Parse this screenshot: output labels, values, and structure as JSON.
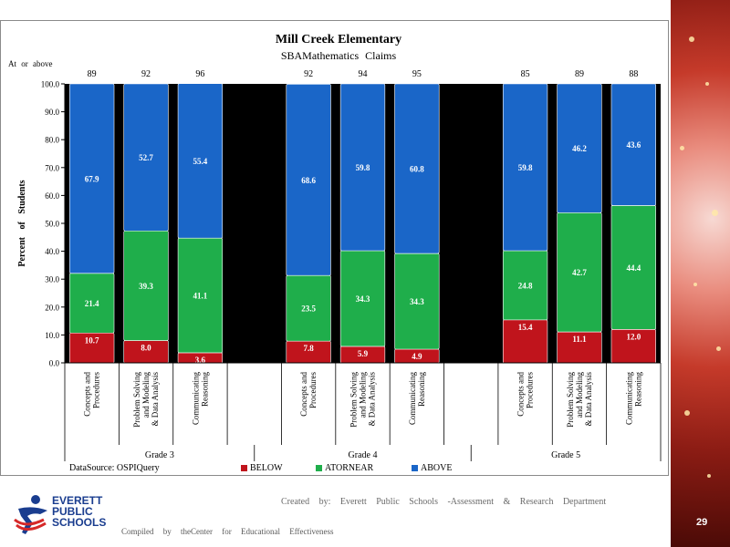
{
  "page_number": "29",
  "footer": {
    "credit": "Created by: Everett Public Schools -Assessment & Research Department",
    "compiled": "Compiled by theCenter for Educational Effectiveness"
  },
  "logo": {
    "line1": "EVERETT",
    "line2": "PUBLIC",
    "line3": "SCHOOLS"
  },
  "chart_data": {
    "type": "bar",
    "stacked": true,
    "title": "Mill Creek Elementary",
    "subtitle": "SBAMathematics Claims",
    "ylabel": "Percent of Students",
    "ylim": [
      0,
      100
    ],
    "yticks": [
      "0.0",
      "10.0",
      "20.0",
      "30.0",
      "40.0",
      "50.0",
      "60.0",
      "70.0",
      "80.0",
      "90.0",
      "100.0"
    ],
    "top_row_label": "At or above",
    "data_source": "DataSource: OSPIQuery",
    "groups": [
      {
        "name": "Grade 3",
        "categories": [
          {
            "lines": [
              "Concepts and",
              "Procedures"
            ],
            "below": 10.7,
            "at_or_near": 21.4,
            "above": 67.9,
            "at_or_above_label": "89",
            "below_label": "10.7",
            "at_or_near_label": "21.4",
            "above_label": "67.9"
          },
          {
            "lines": [
              "Problem Solving",
              "and Modeling",
              "& Data Analysis"
            ],
            "below": 8.0,
            "at_or_near": 39.3,
            "above": 52.7,
            "at_or_above_label": "92",
            "below_label": "8.0",
            "at_or_near_label": "39.3",
            "above_label": "52.7"
          },
          {
            "lines": [
              "Communicating",
              "Reasoning"
            ],
            "below": 3.6,
            "at_or_near": 41.1,
            "above": 55.4,
            "at_or_above_label": "96",
            "below_label": "3.6",
            "at_or_near_label": "41.1",
            "above_label": "55.4"
          }
        ]
      },
      {
        "name": "Grade 4",
        "categories": [
          {
            "lines": [
              "Concepts and",
              "Procedures"
            ],
            "below": 7.8,
            "at_or_near": 23.5,
            "above": 68.6,
            "at_or_above_label": "92",
            "below_label": "7.8",
            "at_or_near_label": "23.5",
            "above_label": "68.6"
          },
          {
            "lines": [
              "Problem Solving",
              "and Modeling",
              "& Data Analysis"
            ],
            "below": 5.9,
            "at_or_near": 34.3,
            "above": 59.8,
            "at_or_above_label": "94",
            "below_label": "5.9",
            "at_or_near_label": "34.3",
            "above_label": "59.8"
          },
          {
            "lines": [
              "Communicating",
              "Reasoning"
            ],
            "below": 4.9,
            "at_or_near": 34.3,
            "above": 60.8,
            "at_or_above_label": "95",
            "below_label": "4.9",
            "at_or_near_label": "34.3",
            "above_label": "60.8"
          }
        ]
      },
      {
        "name": "Grade 5",
        "categories": [
          {
            "lines": [
              "Concepts and",
              "Procedures"
            ],
            "below": 15.4,
            "at_or_near": 24.8,
            "above": 59.8,
            "at_or_above_label": "85",
            "below_label": "15.4",
            "at_or_near_label": "24.8",
            "above_label": "59.8"
          },
          {
            "lines": [
              "Problem Solving",
              "and Modeling",
              "& Data Analysis"
            ],
            "below": 11.1,
            "at_or_near": 42.7,
            "above": 46.2,
            "at_or_above_label": "89",
            "below_label": "11.1",
            "at_or_near_label": "42.7",
            "above_label": "46.2"
          },
          {
            "lines": [
              "Communicating",
              "Reasoning"
            ],
            "below": 12.0,
            "at_or_near": 44.4,
            "above": 43.6,
            "at_or_above_label": "88",
            "below_label": "12.0",
            "at_or_near_label": "44.4",
            "above_label": "43.6"
          }
        ]
      }
    ],
    "series": [
      {
        "key": "below",
        "name": "BELOW",
        "color": "#c0141c"
      },
      {
        "key": "at_or_near",
        "name": "ATORNEAR",
        "color": "#1fae4b"
      },
      {
        "key": "above",
        "name": "ABOVE",
        "color": "#1a66c8"
      }
    ],
    "plot_background": "#000000",
    "grid": false,
    "legend_position": "bottom"
  }
}
